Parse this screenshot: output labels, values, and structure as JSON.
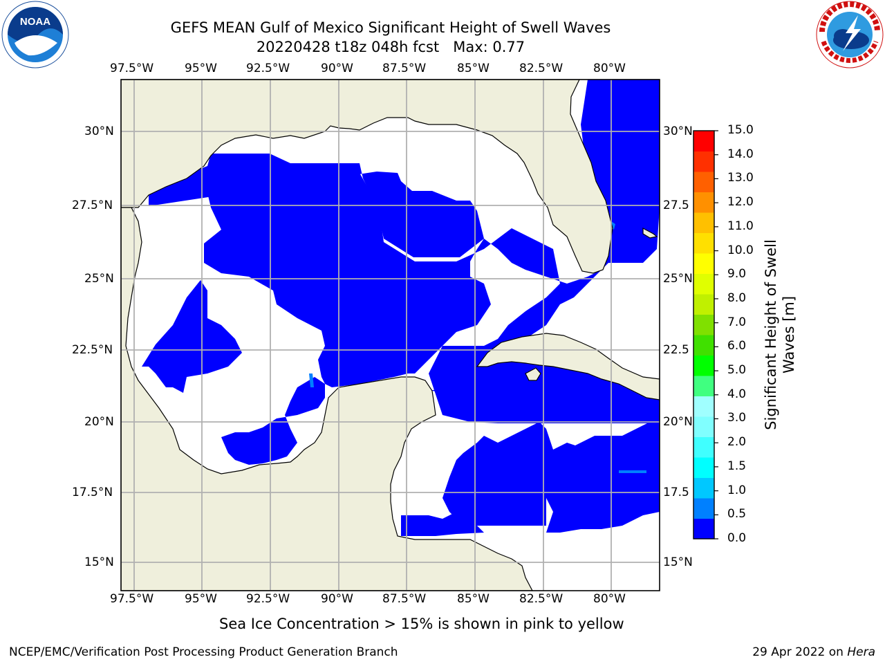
{
  "title_line1": "GEFS MEAN Gulf of Mexico Significant Height of Swell Waves",
  "title_line2": "20220428 t18z 048h fcst   Max: 0.77",
  "lon_labels": [
    "97.5°W",
    "95°W",
    "92.5°W",
    "90°W",
    "87.5°W",
    "85°W",
    "82.5°W",
    "80°W"
  ],
  "lat_labels_left": [
    "30°N",
    "27.5°N",
    "25°N",
    "22.5°N",
    "20°N",
    "17.5°N",
    "15°N"
  ],
  "lat_labels_right": [
    "30°N",
    "27.5",
    "25°N",
    "22.5",
    "20°N",
    "17.5",
    "15°N"
  ],
  "colorbar": {
    "label": "Significant Height of Swell Waves [m]",
    "label_line1": "Significant Height of Swell",
    "label_line2": "Waves [m]",
    "ticks": [
      "15.0",
      "14.0",
      "13.0",
      "12.0",
      "11.0",
      "10.0",
      "9.0",
      "8.0",
      "7.0",
      "6.0",
      "5.0",
      "4.0",
      "3.0",
      "2.0",
      "1.5",
      "1.0",
      "0.5",
      "0.0"
    ],
    "colors": [
      "#0000ff",
      "#0080ff",
      "#00c8ff",
      "#00ffff",
      "#40ffff",
      "#80ffff",
      "#a0ffff",
      "#40ff80",
      "#00ff00",
      "#40e000",
      "#80e000",
      "#c0f000",
      "#e0ff00",
      "#ffff00",
      "#ffe000",
      "#ffc000",
      "#ff9000",
      "#ff6000",
      "#ff3000",
      "#ff0000"
    ]
  },
  "sea_ice_note": "Sea Ice Concentration > 15% is shown in pink to yellow",
  "footer_left": "NCEP/EMC/Verification Post Processing Product Generation Branch",
  "footer_right_prefix": "29 Apr 2022 on ",
  "footer_right_host": "Hera",
  "logos": {
    "left": "NOAA",
    "right_icon": "nws-logo"
  },
  "colors": {
    "land": "#efefdc",
    "swell_low": "#0000ff",
    "swell_mid": "#0080ff",
    "grid": "#b0b0b0"
  }
}
